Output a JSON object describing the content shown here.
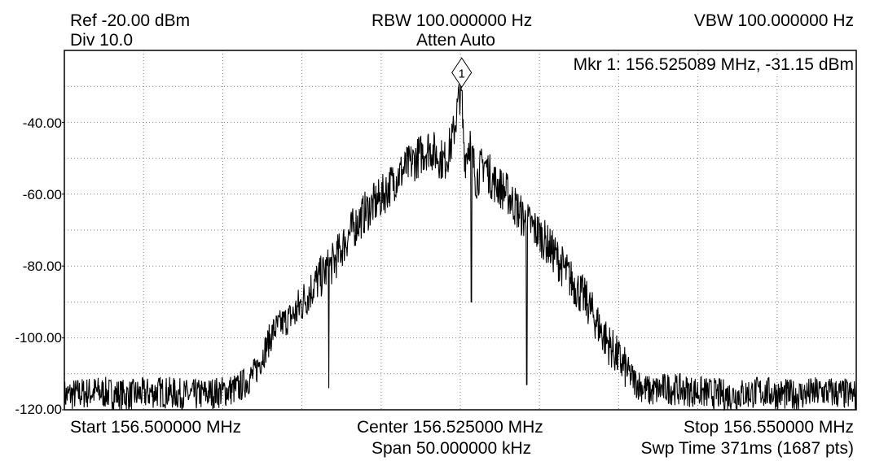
{
  "header": {
    "ref": "Ref -20.00 dBm",
    "div": "Div 10.0",
    "rbw": "RBW 100.000000 Hz",
    "atten": "Atten Auto",
    "vbw": "VBW 100.000000 Hz"
  },
  "marker": {
    "label": "1",
    "readout": "Mkr 1: 156.525089 MHz, -31.15 dBm"
  },
  "footer": {
    "start": "Start 156.500000 MHz",
    "center": "Center 156.525000 MHz",
    "stop": "Stop 156.550000 MHz",
    "span": "Span 50.000000 kHz",
    "sweep": "Swp Time 371ms (1687 pts)"
  },
  "colors": {
    "trace": "#000000",
    "grid": "#808080",
    "background": "#ffffff"
  },
  "chart_data": {
    "type": "line",
    "title": "",
    "xlabel": "",
    "ylabel": "",
    "xlim": [
      156.5,
      156.55
    ],
    "ylim": [
      -120,
      -20
    ],
    "grid": true,
    "y_tick_labels": [
      "-40.00",
      "-60.00",
      "-80.00",
      "-100.00",
      "-120.00"
    ],
    "y_ticks": [
      -40,
      -60,
      -80,
      -100,
      -120
    ],
    "marker": {
      "x": 156.525089,
      "y": -31.15
    },
    "series": [
      {
        "x": [
          156.5,
          156.502,
          156.504,
          156.506,
          156.508,
          156.51,
          156.511,
          156.512,
          156.5132,
          156.5146,
          156.5158,
          156.517,
          156.518,
          156.519,
          156.52,
          156.521,
          156.522,
          156.523,
          156.524,
          156.5245,
          156.525,
          156.5253,
          156.5256,
          156.526,
          156.5265,
          156.527,
          156.528,
          156.529,
          156.53,
          156.531,
          156.532,
          156.533,
          156.534,
          156.535,
          156.536,
          156.5366,
          156.537,
          156.538,
          156.54,
          156.542,
          156.544,
          156.546,
          156.548,
          156.55
        ],
        "y": [
          -116,
          -115,
          -116,
          -115,
          -116,
          -115,
          -114,
          -110,
          -98,
          -93,
          -85,
          -79,
          -71,
          -65,
          -61,
          -55,
          -51,
          -47,
          -51,
          -45,
          -31.15,
          -50,
          -45,
          -56,
          -51,
          -56,
          -60,
          -67,
          -71,
          -77,
          -84,
          -90,
          -99,
          -106,
          -112,
          -114,
          -115,
          -114,
          -115,
          -116,
          -115,
          -116,
          -115,
          -116
        ]
      }
    ]
  }
}
